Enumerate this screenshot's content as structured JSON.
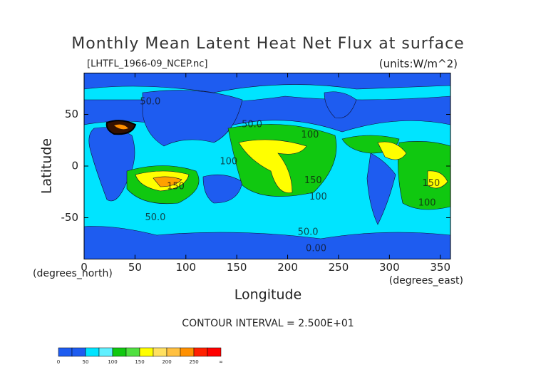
{
  "chart_data": {
    "type": "contour",
    "title": "Monthly Mean Latent Heat Net Flux at surface",
    "subtitle": "[LHTFL_1966-09_NCEP.nc]",
    "units": "(units:W/m^2)",
    "xlabel": "Longitude",
    "ylabel": "Latitude",
    "xunits": "(degrees_east)",
    "yunits": "(degrees_north)",
    "note": "CONTOUR INTERVAL = 2.500E+01",
    "xlim": [
      0,
      360
    ],
    "ylim": [
      -90,
      90
    ],
    "xticks": [
      0,
      50,
      100,
      150,
      200,
      250,
      300,
      350
    ],
    "yticks": [
      -50,
      0,
      50
    ],
    "contour_labels": [
      {
        "label": "50.0",
        "x": 65,
        "y": 62
      },
      {
        "label": "50.0",
        "x": 165,
        "y": 40
      },
      {
        "label": "100",
        "x": 222,
        "y": 30
      },
      {
        "label": "100",
        "x": 142,
        "y": 4
      },
      {
        "label": "150",
        "x": 90,
        "y": -20
      },
      {
        "label": "150",
        "x": 225,
        "y": -14
      },
      {
        "label": "100",
        "x": 230,
        "y": -30
      },
      {
        "label": "150",
        "x": 341,
        "y": -17
      },
      {
        "label": "100",
        "x": 337,
        "y": -36
      },
      {
        "label": "50.0",
        "x": 70,
        "y": -50
      },
      {
        "label": "50.0",
        "x": 220,
        "y": -64
      },
      {
        "label": "0.00",
        "x": 228,
        "y": -80
      }
    ],
    "colorbar": {
      "colors": [
        "#1e5cf0",
        "#1e5cf0",
        "#00e4ff",
        "#60f0ff",
        "#10c810",
        "#50e040",
        "#ffff00",
        "#ffe060",
        "#ffc040",
        "#ff9000",
        "#ff2000",
        "#ff0000"
      ],
      "ticks": [
        0,
        50,
        100,
        150,
        200,
        250,
        "∞"
      ]
    }
  }
}
